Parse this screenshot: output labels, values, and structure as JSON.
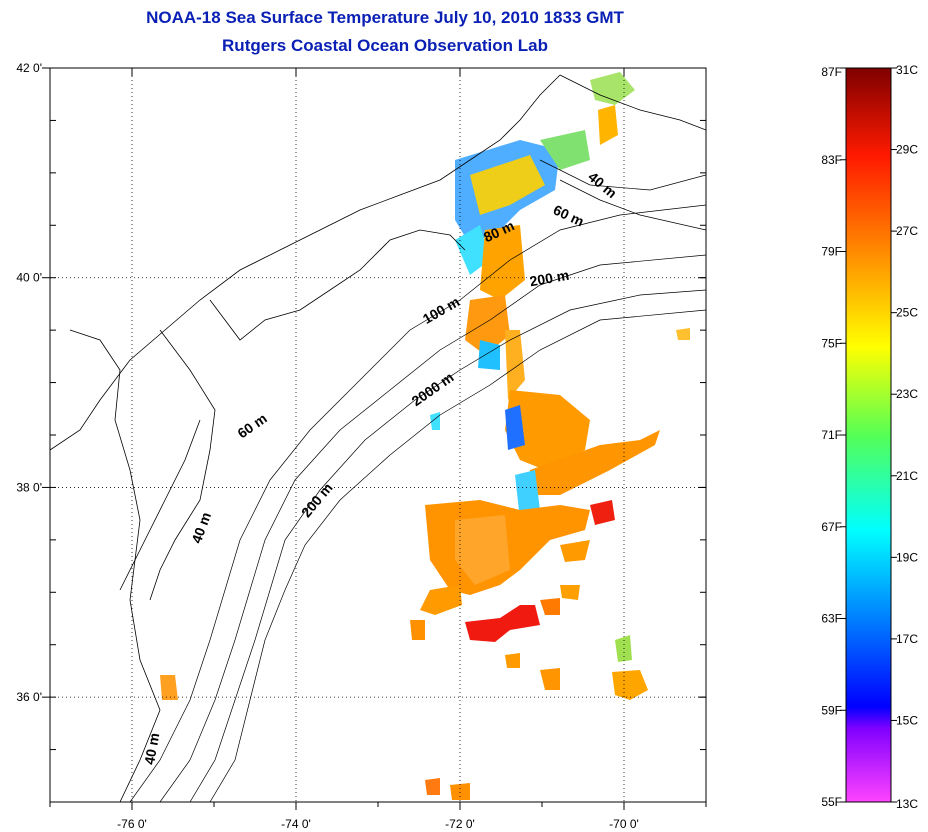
{
  "title": {
    "line1": "NOAA-18 Sea Surface Temperature July 10, 2010 1833 GMT",
    "line2": "Rutgers Coastal Ocean Observation Lab"
  },
  "map": {
    "lon_range": [
      -77,
      -69
    ],
    "lat_range": [
      35,
      42
    ],
    "lon_ticks": [
      {
        "value": -76,
        "label": "-76 0'"
      },
      {
        "value": -74,
        "label": "-74 0'"
      },
      {
        "value": -72,
        "label": "-72 0'"
      },
      {
        "value": -70,
        "label": "-70 0'"
      }
    ],
    "lat_ticks": [
      {
        "value": 42,
        "label": "42 0'"
      },
      {
        "value": 40,
        "label": "40 0'"
      },
      {
        "value": 38,
        "label": "38 0'"
      },
      {
        "value": 36,
        "label": "36 0'"
      }
    ],
    "grid": "dotted",
    "isobath_labels": [
      {
        "text": "40 m",
        "lon": -70.3,
        "lat": 40.85,
        "angle": 40
      },
      {
        "text": "60 m",
        "lon": -70.7,
        "lat": 40.55,
        "angle": 25
      },
      {
        "text": "80 m",
        "lon": -71.5,
        "lat": 40.4,
        "angle": -25
      },
      {
        "text": "200 m",
        "lon": -70.9,
        "lat": 39.95,
        "angle": -10
      },
      {
        "text": "100 m",
        "lon": -72.2,
        "lat": 39.65,
        "angle": -30
      },
      {
        "text": "2000 m",
        "lon": -72.3,
        "lat": 38.9,
        "angle": -35
      },
      {
        "text": "60 m",
        "lon": -74.5,
        "lat": 38.55,
        "angle": -35
      },
      {
        "text": "200 m",
        "lon": -73.7,
        "lat": 37.85,
        "angle": -50
      },
      {
        "text": "40 m",
        "lon": -75.1,
        "lat": 37.6,
        "angle": -70
      },
      {
        "text": "40 m",
        "lon": -75.7,
        "lat": 35.5,
        "angle": -80
      }
    ]
  },
  "colorbar": {
    "fahrenheit_labels": [
      "87F",
      "83F",
      "79F",
      "75F",
      "71F",
      "67F",
      "63F",
      "59F",
      "55F"
    ],
    "celsius_labels": [
      "31C",
      "29C",
      "27C",
      "25C",
      "23C",
      "21C",
      "19C",
      "17C",
      "15C",
      "13C"
    ],
    "colors": {
      "top": "#7f0000",
      "red": "#ff1a00",
      "orange": "#ff8a00",
      "yellow": "#ffff00",
      "green": "#55ff55",
      "cyan": "#00ffff",
      "blue": "#0000ff",
      "violet": "#8000ff",
      "bottom": "#ff44ff"
    }
  }
}
